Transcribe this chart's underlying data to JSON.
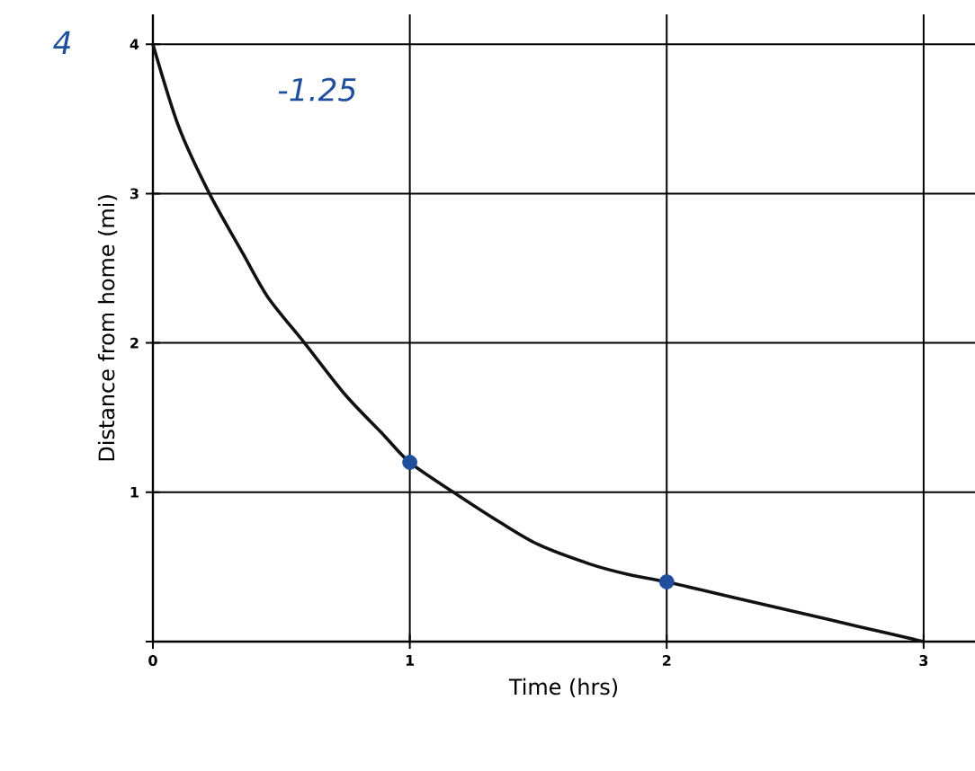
{
  "chart_data": {
    "type": "line",
    "xlabel": "Time (hrs)",
    "ylabel": "Distance from home (mi)",
    "xlim": [
      0,
      3.2
    ],
    "ylim": [
      0,
      4.2
    ],
    "xticks": [
      0,
      1,
      2,
      3
    ],
    "yticks": [
      {
        "value": 0,
        "label": null
      },
      1,
      2,
      3,
      4
    ],
    "grid": true,
    "series": [
      {
        "color": "#111111",
        "marker": "none",
        "x": [
          0,
          0.1,
          0.22,
          0.35,
          0.45,
          0.59,
          0.75,
          0.9,
          1,
          1.17,
          1.35,
          1.5,
          1.7,
          1.85,
          2,
          2.25,
          2.5,
          2.75,
          3
        ],
        "values": [
          4,
          3.45,
          3,
          2.6,
          2.3,
          2,
          1.65,
          1.38,
          1.2,
          1,
          0.8,
          0.65,
          0.52,
          0.45,
          0.4,
          0.3,
          0.2,
          0.1,
          0
        ]
      },
      {
        "type": "scatter",
        "color": "#1f4f9c",
        "marker": "circle",
        "x": [
          1,
          2
        ],
        "values": [
          1.2,
          0.4
        ]
      }
    ],
    "annotations": [
      "4",
      "-1.25"
    ]
  }
}
